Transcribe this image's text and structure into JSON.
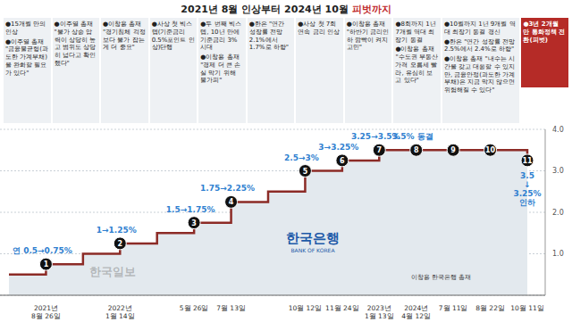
{
  "chart_data": {
    "type": "line",
    "title": "2021년 8월 인상부터 2024년 10월 피벗까지",
    "line_style": "step",
    "color": "#8c2b26",
    "grid": true,
    "categories": [
      null,
      "2021년 8월 26일",
      null,
      "2022년 1월 14일",
      null,
      "5월 26일",
      "7월 13일",
      null,
      "10월 12일",
      "11월 24일",
      "2023년 1월 13일",
      "2024년 4월 12일",
      "7월 11일",
      "8월 22일",
      "10월 11일"
    ],
    "values": [
      0.5,
      0.75,
      1.0,
      1.25,
      1.5,
      1.75,
      2.25,
      2.5,
      3.0,
      3.25,
      3.5,
      3.5,
      3.5,
      3.5,
      3.25
    ],
    "markers": [
      null,
      1,
      null,
      2,
      null,
      3,
      4,
      null,
      5,
      6,
      7,
      8,
      9,
      10,
      11
    ],
    "point_labels": [
      null,
      "연 0.5→0.75%",
      null,
      "1→1.25%",
      null,
      "1.5→1.75%",
      "1.75→2.25%",
      null,
      "2.5→3%",
      "3→3.25%",
      "3.25→3.5%",
      "3.5% 동결",
      null,
      null,
      "3.5\n↓\n3.25%\n인하"
    ],
    "ylim": [
      0,
      4
    ],
    "yticks": [
      {
        "value": 1,
        "label": "1.0"
      },
      {
        "value": 2,
        "label": "2.0"
      },
      {
        "value": 3,
        "label": "3.0"
      },
      {
        "value": 4,
        "label": "4.0"
      }
    ],
    "annotations": [
      [
        "●15개월 만의 인상",
        "●이주열 총재 \"금융불균형(과도한 가계부채)을 완화할 필요가 있다\""
      ],
      [
        "●이주열 총재 \"물가 상승 압력이 상당히 높고 범위도 상당히 넓다고 확인했다\""
      ],
      [
        "●이창용 총재 \"경기침체 걱정보다 물가 잡는 게 더 중요\""
      ],
      [
        "●사상 첫 빅스텝(기준금리 0.5%포인트 인상)단행"
      ],
      [
        "●두 번째 빅스텝, 10년 만에 기준금리 3% 시대",
        "●이창용 총재 \"경제 더 큰 손실 막기 위해 불가피\""
      ],
      [
        "●한은 \"연간 성장률 전망 2.1%에서 1.7%로 하향\""
      ],
      [
        "●사상 첫 7회 연속 금리 인상"
      ],
      [
        "●이창용 총재 \"하반기 금리인하 깜빡이 켜지 고민\""
      ],
      [
        "●8회까지 1년 7개월 역대 최장기 동결",
        "●이창용 총재 \"수도권 부동산 가격 오름세 빨라, 유심히 보고 있다\""
      ],
      [
        "●10월까지 1년 9개월 역대 최장기 동결 경신",
        "●한은 \"연간 성장률 전망 2.5%에서 2.4%로 하향\"",
        "●이창용 총재 \"내수는 시간을 갖고 대응할 수 있지만, 금융안정(과도한 가계부채)은 지금 막지 않으면 위험해질 수 있다\""
      ]
    ],
    "highlight": [
      "●3년 2개월 만 통화정책 전환(피벗)"
    ],
    "logo": [
      "한국은행",
      "BANK OF KOREA"
    ],
    "image_caption": "이창용 한국은행 총재",
    "source": "한국일보"
  }
}
